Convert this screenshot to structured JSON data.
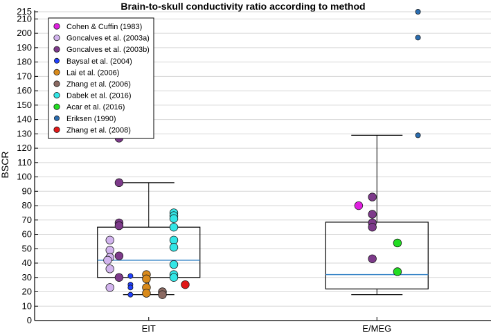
{
  "chart_data": {
    "type": "box",
    "title": "Brain-to-skull conductivity ratio according to method",
    "xlabel": "",
    "ylabel": "BSCR",
    "ylim": [
      0,
      215
    ],
    "yticks": [
      0,
      10,
      20,
      30,
      40,
      50,
      60,
      70,
      80,
      90,
      100,
      110,
      120,
      130,
      140,
      150,
      160,
      170,
      180,
      190,
      200,
      210,
      215
    ],
    "categories": [
      "EIT",
      "E/MEG"
    ],
    "boxes": [
      {
        "category": "EIT",
        "whisker_low": 18,
        "q1": 30,
        "median": 42,
        "q3": 65,
        "whisker_high": 96
      },
      {
        "category": "E/MEG",
        "whisker_low": 18,
        "q1": 22,
        "median": 32,
        "q3": 68.5,
        "whisker_high": 129
      }
    ],
    "legend": {
      "position": "top-left",
      "entries": [
        {
          "label": "Cohen & Cuffin (1983)",
          "color": "#e020e0"
        },
        {
          "label": "Goncalves et al. (2003a)",
          "color": "#d2b4ee"
        },
        {
          "label": "Goncalves et al. (2003b)",
          "color": "#7d3a8a"
        },
        {
          "label": "Baysal et al. (2004)",
          "color": "#2040ff"
        },
        {
          "label": "Lai et al. (2006)",
          "color": "#d98a1a"
        },
        {
          "label": "Zhang et al. (2006)",
          "color": "#8b6a62"
        },
        {
          "label": "Dabek et al. (2016)",
          "color": "#33e6e6"
        },
        {
          "label": "Acar et al. (2016)",
          "color": "#22dd22"
        },
        {
          "label": "Eriksen (1990)",
          "color": "#2a6db0"
        },
        {
          "label": "Zhang et al. (2008)",
          "color": "#e01818"
        }
      ]
    },
    "points": [
      {
        "category": "EIT",
        "series": 1,
        "offset": -0.17,
        "y": 56
      },
      {
        "category": "EIT",
        "series": 1,
        "offset": -0.17,
        "y": 49
      },
      {
        "category": "EIT",
        "series": 1,
        "offset": -0.17,
        "y": 44
      },
      {
        "category": "EIT",
        "series": 1,
        "offset": -0.18,
        "y": 42
      },
      {
        "category": "EIT",
        "series": 1,
        "offset": -0.17,
        "y": 36
      },
      {
        "category": "EIT",
        "series": 1,
        "offset": -0.17,
        "y": 23
      },
      {
        "category": "EIT",
        "series": 2,
        "offset": -0.13,
        "y": 127
      },
      {
        "category": "EIT",
        "series": 2,
        "offset": -0.13,
        "y": 96
      },
      {
        "category": "EIT",
        "series": 2,
        "offset": -0.13,
        "y": 68
      },
      {
        "category": "EIT",
        "series": 2,
        "offset": -0.13,
        "y": 66
      },
      {
        "category": "EIT",
        "series": 2,
        "offset": -0.13,
        "y": 45
      },
      {
        "category": "EIT",
        "series": 2,
        "offset": -0.13,
        "y": 30
      },
      {
        "category": "EIT",
        "series": 3,
        "offset": -0.08,
        "y": 31
      },
      {
        "category": "EIT",
        "series": 3,
        "offset": -0.08,
        "y": 25
      },
      {
        "category": "EIT",
        "series": 3,
        "offset": -0.08,
        "y": 23
      },
      {
        "category": "EIT",
        "series": 3,
        "offset": -0.08,
        "y": 18
      },
      {
        "category": "EIT",
        "series": 4,
        "offset": -0.01,
        "y": 32
      },
      {
        "category": "EIT",
        "series": 4,
        "offset": -0.01,
        "y": 29
      },
      {
        "category": "EIT",
        "series": 4,
        "offset": -0.01,
        "y": 23
      },
      {
        "category": "EIT",
        "series": 4,
        "offset": -0.01,
        "y": 19
      },
      {
        "category": "EIT",
        "series": 5,
        "offset": 0.06,
        "y": 20
      },
      {
        "category": "EIT",
        "series": 5,
        "offset": 0.06,
        "y": 18
      },
      {
        "category": "EIT",
        "series": 6,
        "offset": 0.11,
        "y": 75
      },
      {
        "category": "EIT",
        "series": 6,
        "offset": 0.11,
        "y": 73
      },
      {
        "category": "EIT",
        "series": 6,
        "offset": 0.11,
        "y": 71
      },
      {
        "category": "EIT",
        "series": 6,
        "offset": 0.11,
        "y": 65
      },
      {
        "category": "EIT",
        "series": 6,
        "offset": 0.11,
        "y": 56
      },
      {
        "category": "EIT",
        "series": 6,
        "offset": 0.11,
        "y": 51
      },
      {
        "category": "EIT",
        "series": 6,
        "offset": 0.11,
        "y": 39
      },
      {
        "category": "EIT",
        "series": 6,
        "offset": 0.11,
        "y": 32
      },
      {
        "category": "EIT",
        "series": 6,
        "offset": 0.11,
        "y": 30
      },
      {
        "category": "EIT",
        "series": 9,
        "offset": 0.16,
        "y": 25
      },
      {
        "category": "E/MEG",
        "series": 0,
        "offset": -0.08,
        "y": 80
      },
      {
        "category": "E/MEG",
        "series": 2,
        "offset": -0.02,
        "y": 86
      },
      {
        "category": "E/MEG",
        "series": 2,
        "offset": -0.02,
        "y": 74
      },
      {
        "category": "E/MEG",
        "series": 2,
        "offset": -0.02,
        "y": 68
      },
      {
        "category": "E/MEG",
        "series": 2,
        "offset": -0.02,
        "y": 65
      },
      {
        "category": "E/MEG",
        "series": 2,
        "offset": -0.02,
        "y": 43
      },
      {
        "category": "E/MEG",
        "series": 7,
        "offset": 0.09,
        "y": 54
      },
      {
        "category": "E/MEG",
        "series": 7,
        "offset": 0.09,
        "y": 34
      },
      {
        "category": "E/MEG",
        "series": 8,
        "offset": 0.18,
        "y": 215
      },
      {
        "category": "E/MEG",
        "series": 8,
        "offset": 0.18,
        "y": 197
      },
      {
        "category": "E/MEG",
        "series": 8,
        "offset": 0.18,
        "y": 129
      }
    ]
  }
}
